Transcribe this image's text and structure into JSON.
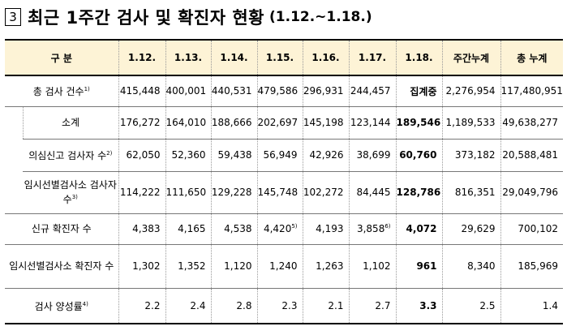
{
  "title": {
    "number": "3",
    "text": "최근 1주간 검사 및 확진자 현황",
    "range": "(1.12.~1.18.)"
  },
  "table": {
    "headers": [
      "구 분",
      "1.12.",
      "1.13.",
      "1.14.",
      "1.15.",
      "1.16.",
      "1.17.",
      "1.18.",
      "주간누계",
      "총 누계"
    ],
    "rows": [
      {
        "label": "총 검사 건수",
        "label_sup": "1)",
        "values": [
          "415,448",
          "400,001",
          "440,531",
          "479,586",
          "296,931",
          "244,457",
          "집계중",
          "2,276,954",
          "117,480,951"
        ],
        "sups": [
          "",
          "",
          "",
          "",
          "",
          "",
          "",
          "",
          ""
        ]
      },
      {
        "label": "소계",
        "label_sup": "",
        "values": [
          "176,272",
          "164,010",
          "188,666",
          "202,697",
          "145,198",
          "123,144",
          "189,546",
          "1,189,533",
          "49,638,277"
        ],
        "sups": [
          "",
          "",
          "",
          "",
          "",
          "",
          "",
          "",
          ""
        ]
      },
      {
        "label": "의심신고 검사자 수",
        "label_sup": "2)",
        "values": [
          "62,050",
          "52,360",
          "59,438",
          "56,949",
          "42,926",
          "38,699",
          "60,760",
          "373,182",
          "20,588,481"
        ],
        "sups": [
          "",
          "",
          "",
          "",
          "",
          "",
          "",
          "",
          ""
        ]
      },
      {
        "label": "임시선별검사소 검사자 수",
        "label_sup": "3)",
        "values": [
          "114,222",
          "111,650",
          "129,228",
          "145,748",
          "102,272",
          "84,445",
          "128,786",
          "816,351",
          "29,049,796"
        ],
        "sups": [
          "",
          "",
          "",
          "",
          "",
          "",
          "",
          "",
          ""
        ]
      },
      {
        "label": "신규 확진자 수",
        "label_sup": "",
        "values": [
          "4,383",
          "4,165",
          "4,538",
          "4,420",
          "4,193",
          "3,858",
          "4,072",
          "29,629",
          "700,102"
        ],
        "sups": [
          "",
          "",
          "",
          "5)",
          "",
          "6)",
          "",
          "",
          ""
        ]
      },
      {
        "label": "임시선별검사소 확진자 수",
        "label_sup": "",
        "values": [
          "1,302",
          "1,352",
          "1,120",
          "1,240",
          "1,263",
          "1,102",
          "961",
          "8,340",
          "185,969"
        ],
        "sups": [
          "",
          "",
          "",
          "",
          "",
          "",
          "",
          "",
          ""
        ]
      },
      {
        "label": "검사 양성률",
        "label_sup": "4)",
        "values": [
          "2.2",
          "2.4",
          "2.8",
          "2.3",
          "2.1",
          "2.7",
          "3.3",
          "2.5",
          "1.4"
        ],
        "sups": [
          "",
          "",
          "",
          "",
          "",
          "",
          "",
          "",
          ""
        ]
      }
    ]
  }
}
